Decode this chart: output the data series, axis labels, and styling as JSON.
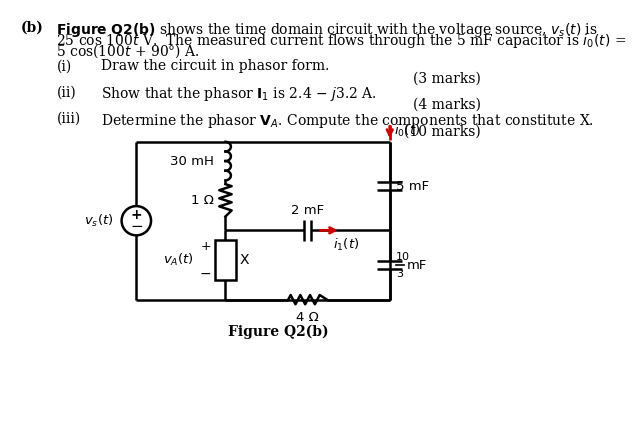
{
  "bg_color": "#ffffff",
  "text_color": "#000000",
  "circuit_color": "#000000",
  "arrow_color": "#cc0000",
  "line1": "$\\bf{Figure\\ Q2(b)}$ shows the time domain circuit with the voltage source, $v_s(t)$ is",
  "line2": "25 cos 100$t$ V.  The measured current flows through the 5 mF capacitor is $i_0(t)$ =",
  "line3": "5 cos(100$t$ + 90°) A.",
  "qi_label": "(i)",
  "qi_text": "Draw the circuit in phasor form.",
  "qi_marks": "(3 marks)",
  "qii_label": "(ii)",
  "qii_text": "Show that the phasor $\\mathbf{I}_1$ is 2.4 $-$ $j$3.2 A.",
  "qii_marks": "(4 marks)",
  "qiii_label": "(iii)",
  "qiii_text": "Determine the phasor $\\mathbf{V}_A$. Compute the components that constitute X.",
  "qiii_marks": "(10 marks)",
  "fig_caption": "Figure Q2(b)",
  "label_30mH": "30 mH",
  "label_1ohm": "1 Ω",
  "label_2mF": "2 mF",
  "label_5mF": "5 mF",
  "label_103mF_num": "10",
  "label_103mF_den": "3",
  "label_103mF_unit": "mF",
  "label_4ohm": "4 Ω",
  "label_vs": "$v_s(t)$",
  "label_vA": "$v_A(t)$",
  "label_X": "X",
  "label_io": "$i_0(t)$",
  "label_i1": "$i_1(t)$",
  "label_plus": "+",
  "label_minus": "−"
}
